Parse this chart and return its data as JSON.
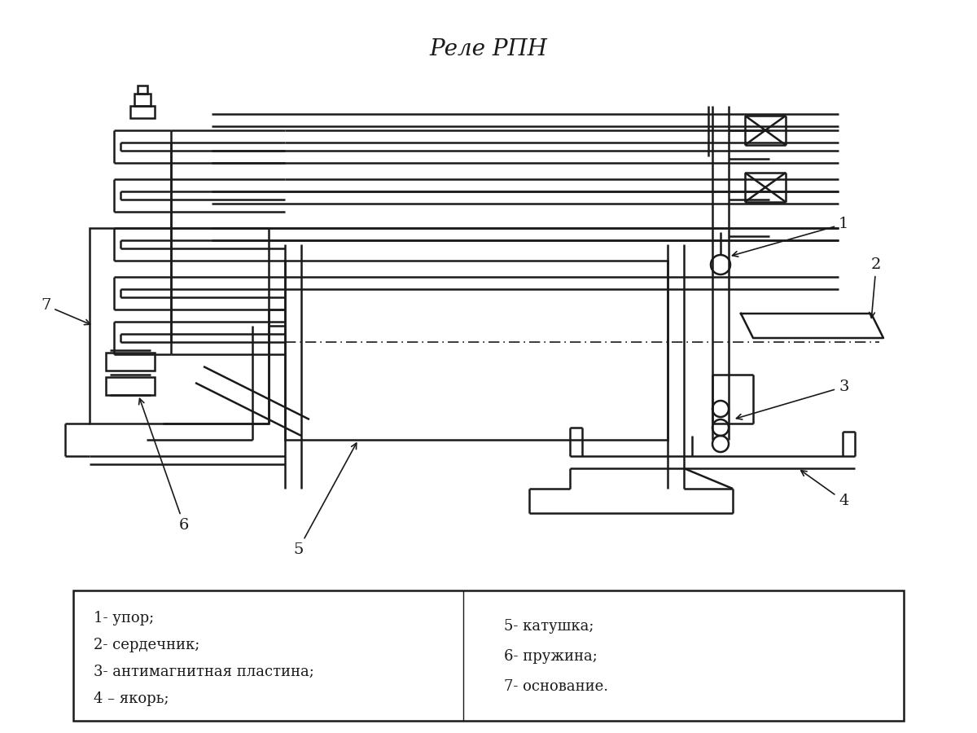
{
  "title": "Реле РПН",
  "title_fontsize": 20,
  "background_color": "#ffffff",
  "line_color": "#1a1a1a",
  "lw": 1.8,
  "legend_left": [
    "1- упор;",
    "2- сердечник;",
    "3- антимагнитная пластина;",
    "4 – якорь;"
  ],
  "legend_right": [
    "5- катушка;",
    "6- пружина;",
    "7- основание."
  ]
}
